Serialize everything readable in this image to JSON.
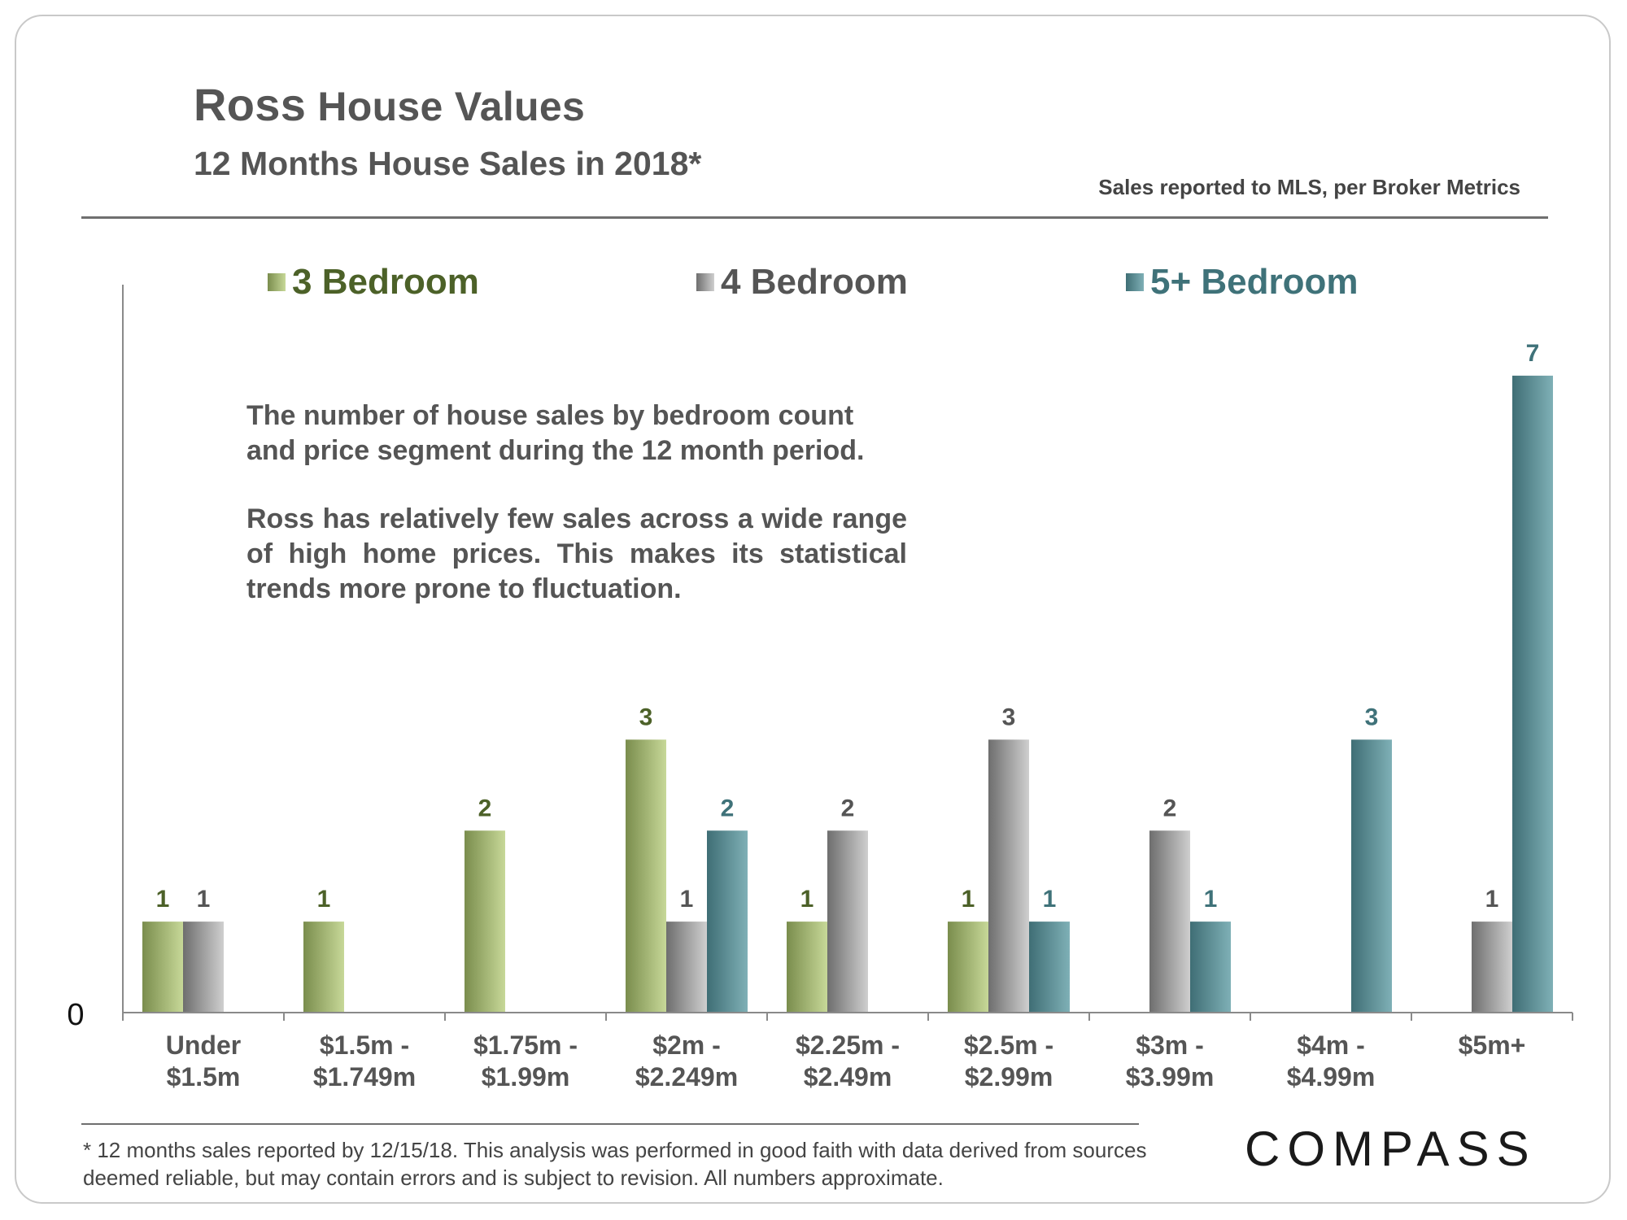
{
  "header": {
    "title_big": "Ross",
    "title_rest": " House Values",
    "subtitle": "12 Months House Sales in 2018*",
    "source_note": "Sales reported to MLS, per Broker Metrics"
  },
  "annotation": {
    "paragraph1": "The number of house sales by bedroom count and price segment during the 12 month period.",
    "paragraph2": "Ross has relatively few sales across a wide range of high home prices. This makes its statistical trends more prone to fluctuation."
  },
  "footnote": "* 12 months sales reported by 12/15/18. This analysis was performed in good faith with data derived from sources deemed reliable, but may contain errors and is subject to revision. All numbers approximate.",
  "logo": {
    "text": "COMPASS"
  },
  "colors": {
    "green_light": "#c7d898",
    "green_dark": "#7a8d4d",
    "green_label": "#4c6128",
    "gray_light": "#cfcfcf",
    "gray_dark": "#6e6e6e",
    "gray_label": "#555555",
    "teal_light": "#7fb0b6",
    "teal_dark": "#3f6e75",
    "teal_label": "#3f7279",
    "axis": "#8a8a8a"
  },
  "chart_data": {
    "type": "bar",
    "title": "12 Months House Sales in 2018*",
    "xlabel": "",
    "ylabel": "",
    "ylim": [
      0,
      7
    ],
    "y_tick_labels": [
      "0"
    ],
    "categories": [
      [
        "Under",
        "$1.5m"
      ],
      [
        "$1.5m -",
        "$1.749m"
      ],
      [
        "$1.75m -",
        "$1.99m"
      ],
      [
        "$2m -",
        "$2.249m"
      ],
      [
        "$2.25m -",
        "$2.49m"
      ],
      [
        "$2.5m -",
        "$2.99m"
      ],
      [
        "$3m -",
        "$3.99m"
      ],
      [
        "$4m -",
        "$4.99m"
      ],
      [
        "$5m+"
      ]
    ],
    "legend_position": "top",
    "series": [
      {
        "name": "3 Bedroom",
        "color": "#7a8d4d",
        "values": [
          1,
          1,
          2,
          3,
          1,
          1,
          0,
          0,
          0
        ]
      },
      {
        "name": "4 Bedroom",
        "color": "#6e6e6e",
        "values": [
          1,
          0,
          0,
          1,
          2,
          3,
          2,
          0,
          1
        ]
      },
      {
        "name": "5+ Bedroom",
        "color": "#3f6e75",
        "values": [
          0,
          0,
          0,
          2,
          0,
          1,
          1,
          3,
          7
        ]
      }
    ]
  }
}
